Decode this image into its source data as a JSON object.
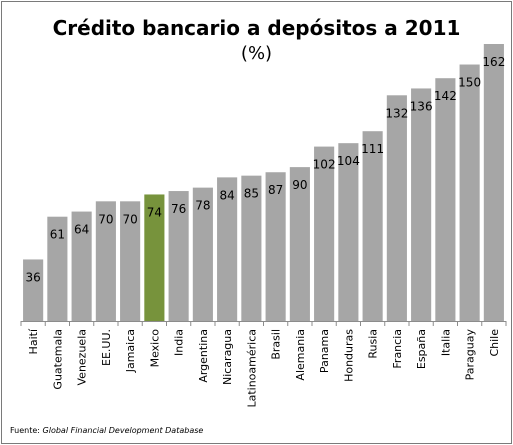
{
  "chart_data": {
    "type": "bar",
    "title": "Crédito bancario a depósitos a 2011",
    "subtitle": "(%)",
    "categories": [
      "Haití",
      "Guatemala",
      "Venezuela",
      "EE.UU.",
      "Jamaica",
      "Mexico",
      "India",
      "Argentina",
      "Nicaragua",
      "Latinoamérica",
      "Brasil",
      "Alemania",
      "Panama",
      "Honduras",
      "Rusia",
      "Francia",
      "España",
      "Italia",
      "Paraguay",
      "Chile"
    ],
    "values": [
      36,
      61,
      64,
      70,
      70,
      74,
      76,
      78,
      84,
      85,
      87,
      90,
      102,
      104,
      111,
      132,
      136,
      142,
      150,
      162
    ],
    "highlight_category": "Mexico",
    "colors": {
      "bar": "#a6a6a6",
      "highlight": "#77933c"
    },
    "ylim": [
      0,
      162
    ],
    "grid": false,
    "legend": "none"
  },
  "source": {
    "prefix": "Fuente: ",
    "name": "Global Financial Development Database"
  }
}
